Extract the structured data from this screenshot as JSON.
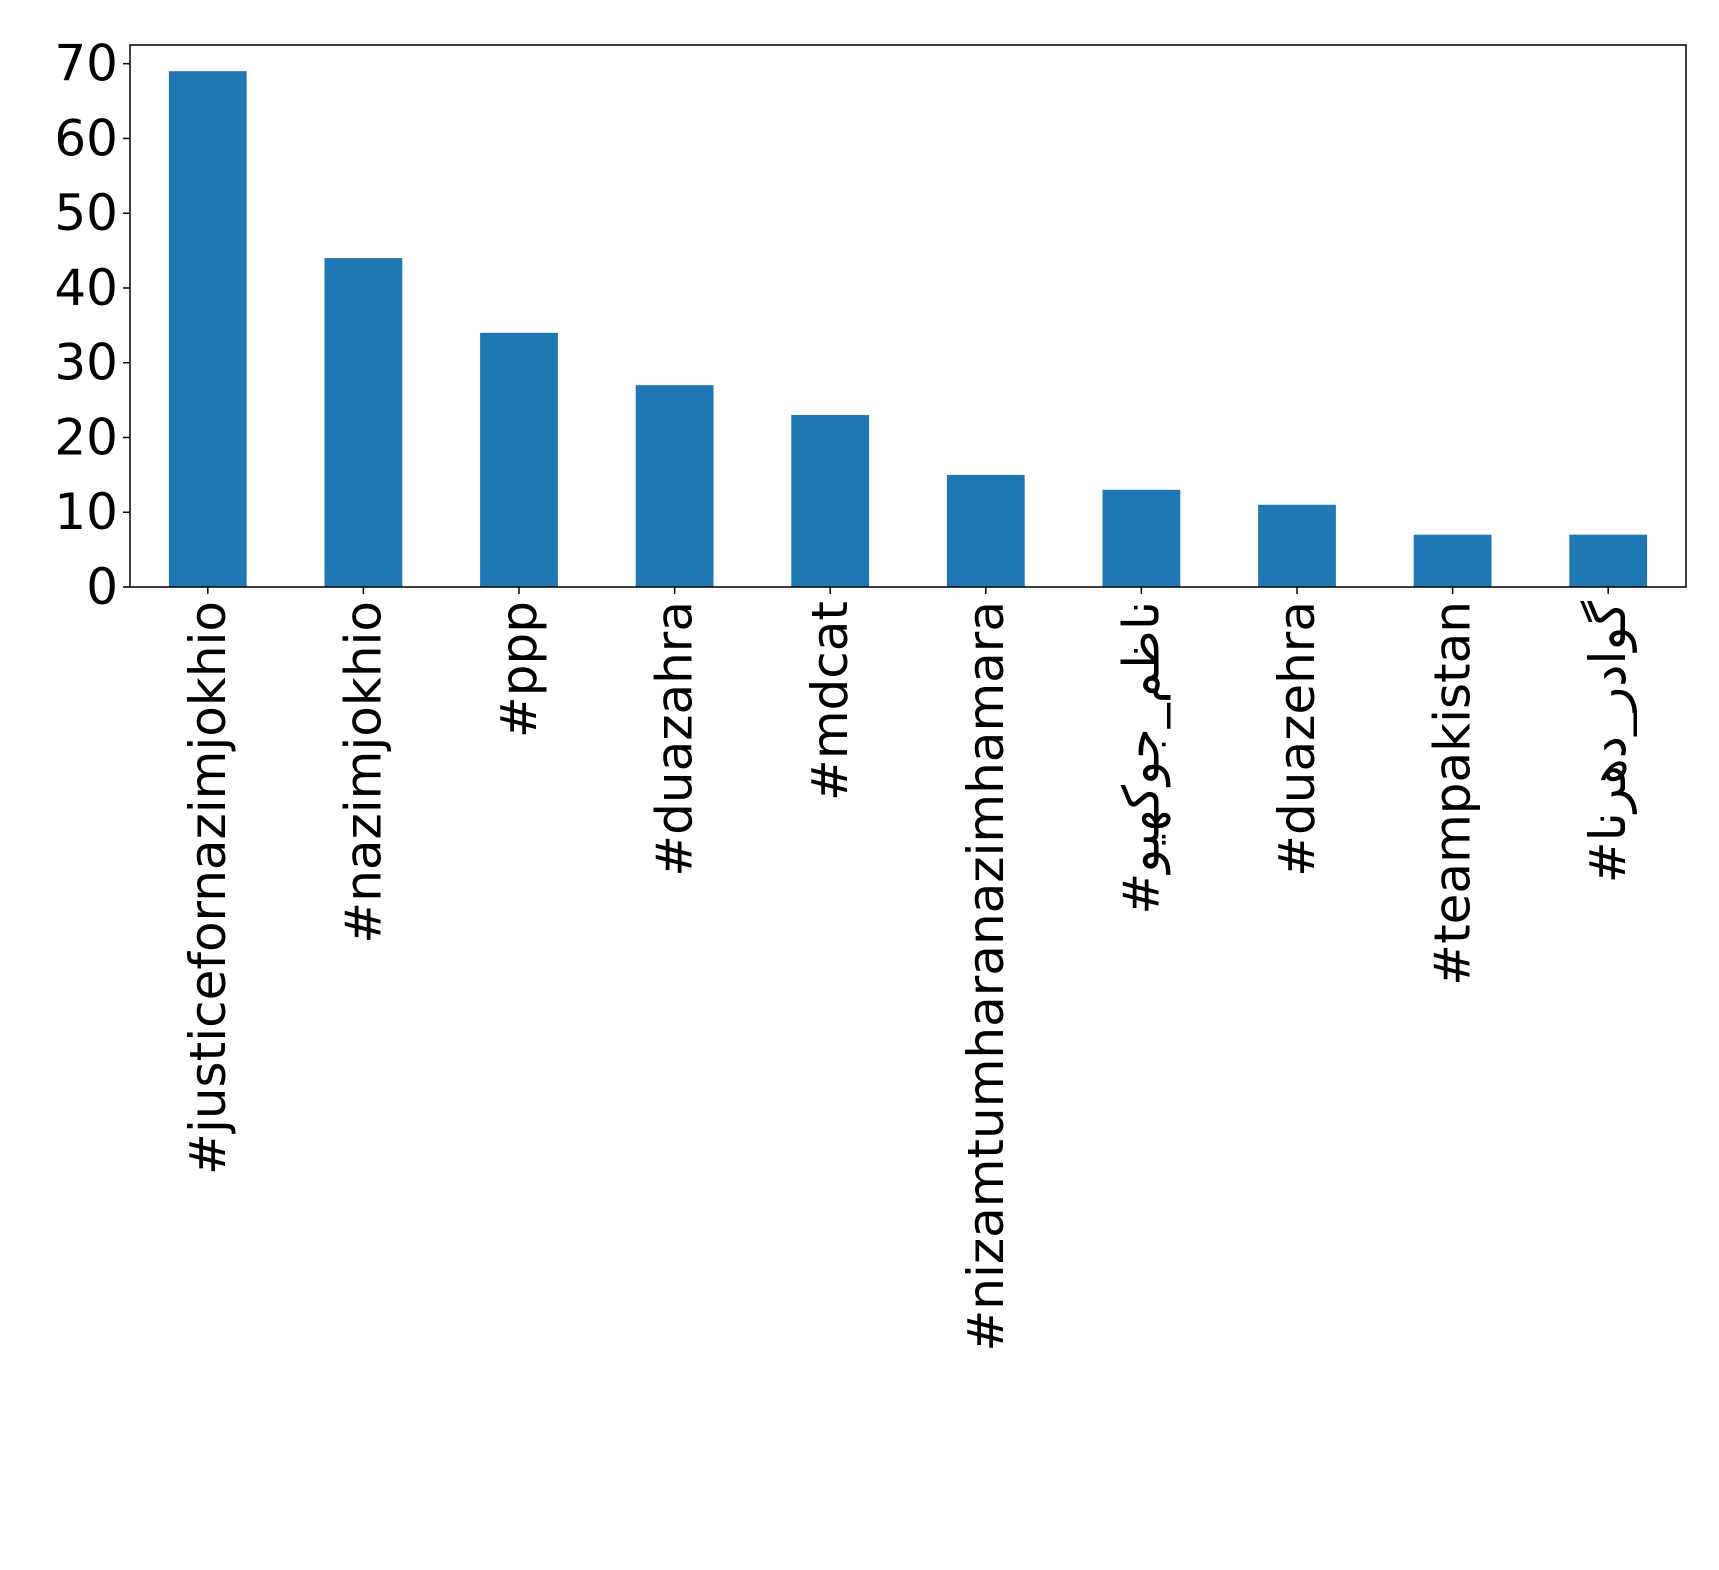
{
  "chart_data": {
    "type": "bar",
    "title": "",
    "xlabel": "",
    "ylabel": "",
    "categories": [
      "#justicefornazimjokhio",
      "#nazimjokhio",
      "#ppp",
      "#duazahra",
      "#mdcat",
      "#nizamtumharanazimhamara",
      "#ناظم_جوکھیو",
      "#duazehra",
      "#teampakistan",
      "#گوادر_دھرنا"
    ],
    "values": [
      69,
      44,
      34,
      27,
      23,
      15,
      13,
      11,
      7,
      7
    ],
    "ylim": [
      0,
      72.5
    ],
    "yticks": [
      0,
      10,
      20,
      30,
      40,
      50,
      60,
      70
    ],
    "grid": false,
    "legend": "none",
    "bar_color": "#1f77b4"
  }
}
